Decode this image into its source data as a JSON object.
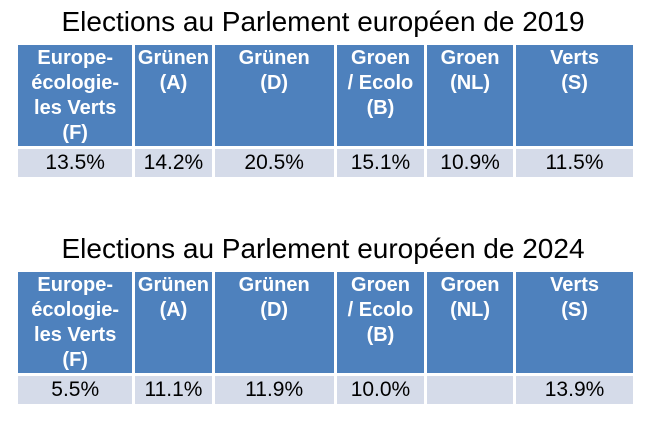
{
  "colors": {
    "header_bg": "#4E81BD",
    "band_bg": "#D5DBE9",
    "header_text": "#FFFFFF",
    "value_text": "#000000",
    "title_text": "#000000",
    "cell_gap": "#FFFFFF"
  },
  "tables": [
    {
      "title": "Elections au Parlement européen de 2019",
      "headers": [
        "Europe-\nécologie-\nles Verts\n(F)",
        "Grünen\n(A)",
        "Grünen\n(D)",
        "Groen\n/ Ecolo\n(B)",
        "Groen\n(NL)",
        "Verts\n(S)"
      ],
      "values": [
        "13.5%",
        "14.2%",
        "20.5%",
        "15.1%",
        "10.9%",
        "11.5%"
      ]
    },
    {
      "title": "Elections au Parlement européen de 2024",
      "headers": [
        "Europe-\nécologie-\nles Verts\n(F)",
        "Grünen\n(A)",
        "Grünen\n(D)",
        "Groen\n/ Ecolo\n(B)",
        "Groen\n(NL)",
        "Verts\n(S)"
      ],
      "values": [
        "5.5%",
        "11.1%",
        "11.9%",
        "10.0%",
        "",
        "13.9%"
      ]
    }
  ],
  "chart_data": [
    {
      "type": "table",
      "title": "Elections au Parlement européen de 2019",
      "columns": [
        "Europe-écologie-les Verts (F)",
        "Grünen (A)",
        "Grünen (D)",
        "Groen / Ecolo (B)",
        "Groen (NL)",
        "Verts (S)"
      ],
      "values_percent": [
        13.5,
        14.2,
        20.5,
        15.1,
        10.9,
        11.5
      ]
    },
    {
      "type": "table",
      "title": "Elections au Parlement européen de 2024",
      "columns": [
        "Europe-écologie-les Verts (F)",
        "Grünen (A)",
        "Grünen (D)",
        "Groen / Ecolo (B)",
        "Groen (NL)",
        "Verts (S)"
      ],
      "values_percent": [
        5.5,
        11.1,
        11.9,
        10.0,
        null,
        13.9
      ]
    }
  ]
}
